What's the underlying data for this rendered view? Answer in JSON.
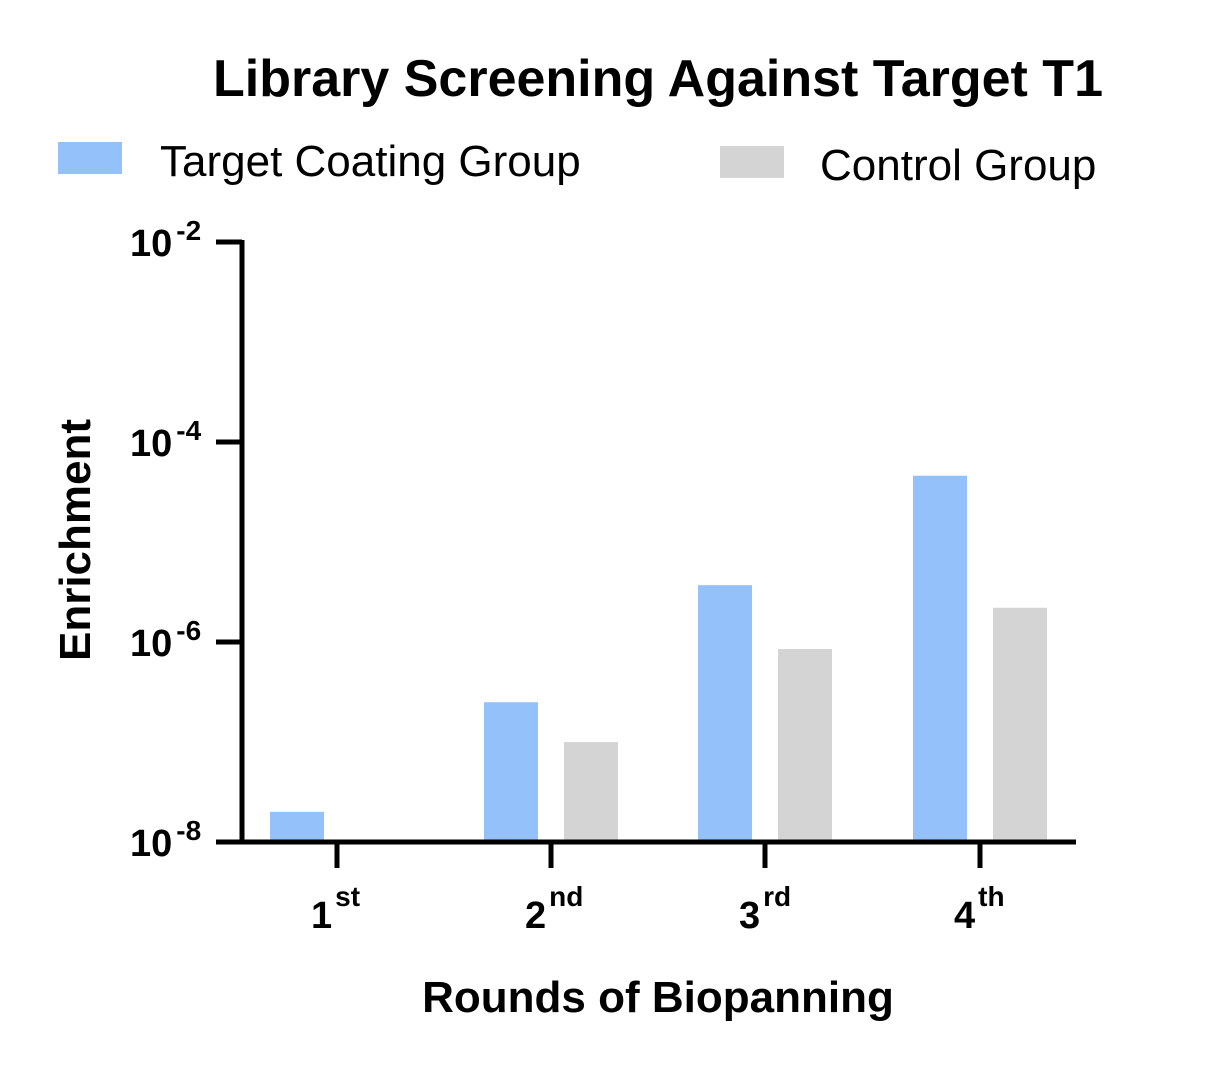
{
  "chart_data": {
    "type": "bar",
    "title": "Library Screening Against Target T1",
    "xlabel": "Rounds of Biopanning",
    "ylabel": "Enrichment",
    "yscale": "log",
    "ylim": [
      1e-08,
      0.01
    ],
    "grid": false,
    "legend_position": "top",
    "categories": [
      {
        "base": "1",
        "sup": "st"
      },
      {
        "base": "2",
        "sup": "nd"
      },
      {
        "base": "3",
        "sup": "rd"
      },
      {
        "base": "4",
        "sup": "th"
      }
    ],
    "series": [
      {
        "name": "Target Coating Group",
        "color": "#94c1fa",
        "values": [
          2e-08,
          2.5e-07,
          3.7e-06,
          4.6e-05
        ]
      },
      {
        "name": "Control Group",
        "color": "#d4d4d4",
        "values": [
          null,
          1e-07,
          8.5e-07,
          2.2e-06
        ]
      }
    ],
    "y_ticks": [
      {
        "base": "10",
        "sup": "-8"
      },
      {
        "base": "10",
        "sup": "-6"
      },
      {
        "base": "10",
        "sup": "-4"
      },
      {
        "base": "10",
        "sup": "-2"
      }
    ]
  }
}
